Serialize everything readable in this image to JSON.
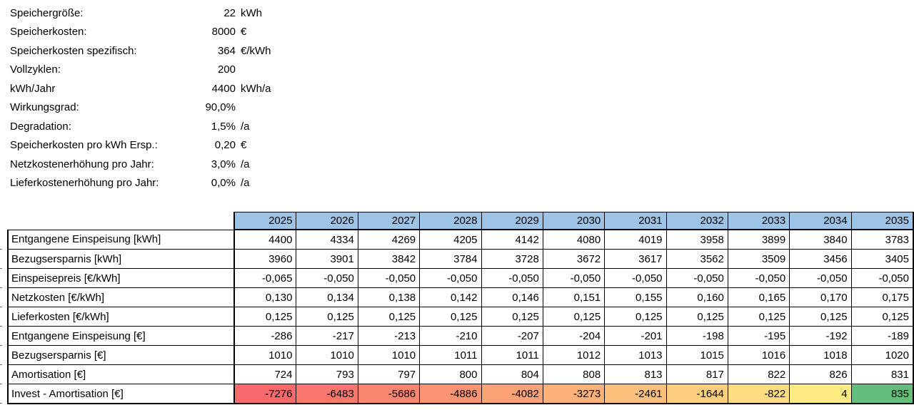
{
  "colors": {
    "header_bg": "#9DC3E6",
    "border": "#000000",
    "text": "#000000",
    "scale_min_red": "#F8696B",
    "scale_mid_yellow": "#FFEB84",
    "scale_max_green": "#63BE7B"
  },
  "parameters": {
    "rows": [
      {
        "label": "Speichergröße:",
        "value": "22",
        "unit": "kWh"
      },
      {
        "label": "Speicherkosten:",
        "value": "8000",
        "unit": "€"
      },
      {
        "label": "Speicherkosten spezifisch:",
        "value": "364",
        "unit": "€/kWh"
      },
      {
        "label": "Vollzyklen:",
        "value": "200",
        "unit": ""
      },
      {
        "label": "kWh/Jahr",
        "value": "4400",
        "unit": "kWh/a"
      },
      {
        "label": "Wirkungsgrad:",
        "value": "90,0%",
        "unit": ""
      },
      {
        "label": "Degradation:",
        "value": "1,5%",
        "unit": "/a"
      },
      {
        "label": "Speicherkosten pro kWh Ersp.:",
        "value": "0,20",
        "unit": "€"
      },
      {
        "label": "Netzkostenerhöhung pro Jahr:",
        "value": "3,0%",
        "unit": "/a"
      },
      {
        "label": "Lieferkostenerhöhung pro Jahr:",
        "value": "0,0%",
        "unit": "/a"
      }
    ]
  },
  "table": {
    "header": {
      "years": [
        "2025",
        "2026",
        "2027",
        "2028",
        "2029",
        "2030",
        "2031",
        "2032",
        "2033",
        "2034",
        "2035"
      ]
    },
    "rows": [
      {
        "label": "Entgangene Einspeisung [kWh]",
        "values": [
          "4400",
          "4334",
          "4269",
          "4205",
          "4142",
          "4080",
          "4019",
          "3958",
          "3899",
          "3840",
          "3783"
        ]
      },
      {
        "label": "Bezugsersparnis [kWh]",
        "values": [
          "3960",
          "3901",
          "3842",
          "3784",
          "3728",
          "3672",
          "3617",
          "3562",
          "3509",
          "3456",
          "3405"
        ]
      },
      {
        "label": "Einspeisepreis [€/kWh]",
        "values": [
          "-0,065",
          "-0,050",
          "-0,050",
          "-0,050",
          "-0,050",
          "-0,050",
          "-0,050",
          "-0,050",
          "-0,050",
          "-0,050",
          "-0,050"
        ]
      },
      {
        "label": "Netzkosten [€/kWh]",
        "values": [
          "0,130",
          "0,134",
          "0,138",
          "0,142",
          "0,146",
          "0,151",
          "0,155",
          "0,160",
          "0,165",
          "0,170",
          "0,175"
        ]
      },
      {
        "label": "Lieferkosten [€/kWh]",
        "values": [
          "0,125",
          "0,125",
          "0,125",
          "0,125",
          "0,125",
          "0,125",
          "0,125",
          "0,125",
          "0,125",
          "0,125",
          "0,125"
        ]
      },
      {
        "label": "Entgangene Einspeisung [€]",
        "values": [
          "-286",
          "-217",
          "-213",
          "-210",
          "-207",
          "-204",
          "-201",
          "-198",
          "-195",
          "-192",
          "-189"
        ]
      },
      {
        "label": "Bezugsersparnis [€]",
        "values": [
          "1010",
          "1010",
          "1010",
          "1011",
          "1011",
          "1012",
          "1013",
          "1015",
          "1016",
          "1018",
          "1020"
        ]
      },
      {
        "label": "Amortisation [€]",
        "values": [
          "724",
          "793",
          "797",
          "800",
          "804",
          "808",
          "813",
          "817",
          "822",
          "826",
          "831"
        ]
      },
      {
        "label": "Invest - Amortisation [€]",
        "values": [
          "-7276",
          "-6483",
          "-5686",
          "-4886",
          "-4082",
          "-3273",
          "-2461",
          "-1644",
          "-822",
          "4",
          "835"
        ],
        "cell_colors": [
          "#F8696B",
          "#F9776E",
          "#FA8570",
          "#FA9473",
          "#FBA276",
          "#FCB179",
          "#FDBF7C",
          "#FDCE7E",
          "#FEDC81",
          "#FFEB84",
          "#63BE7B"
        ]
      }
    ]
  }
}
